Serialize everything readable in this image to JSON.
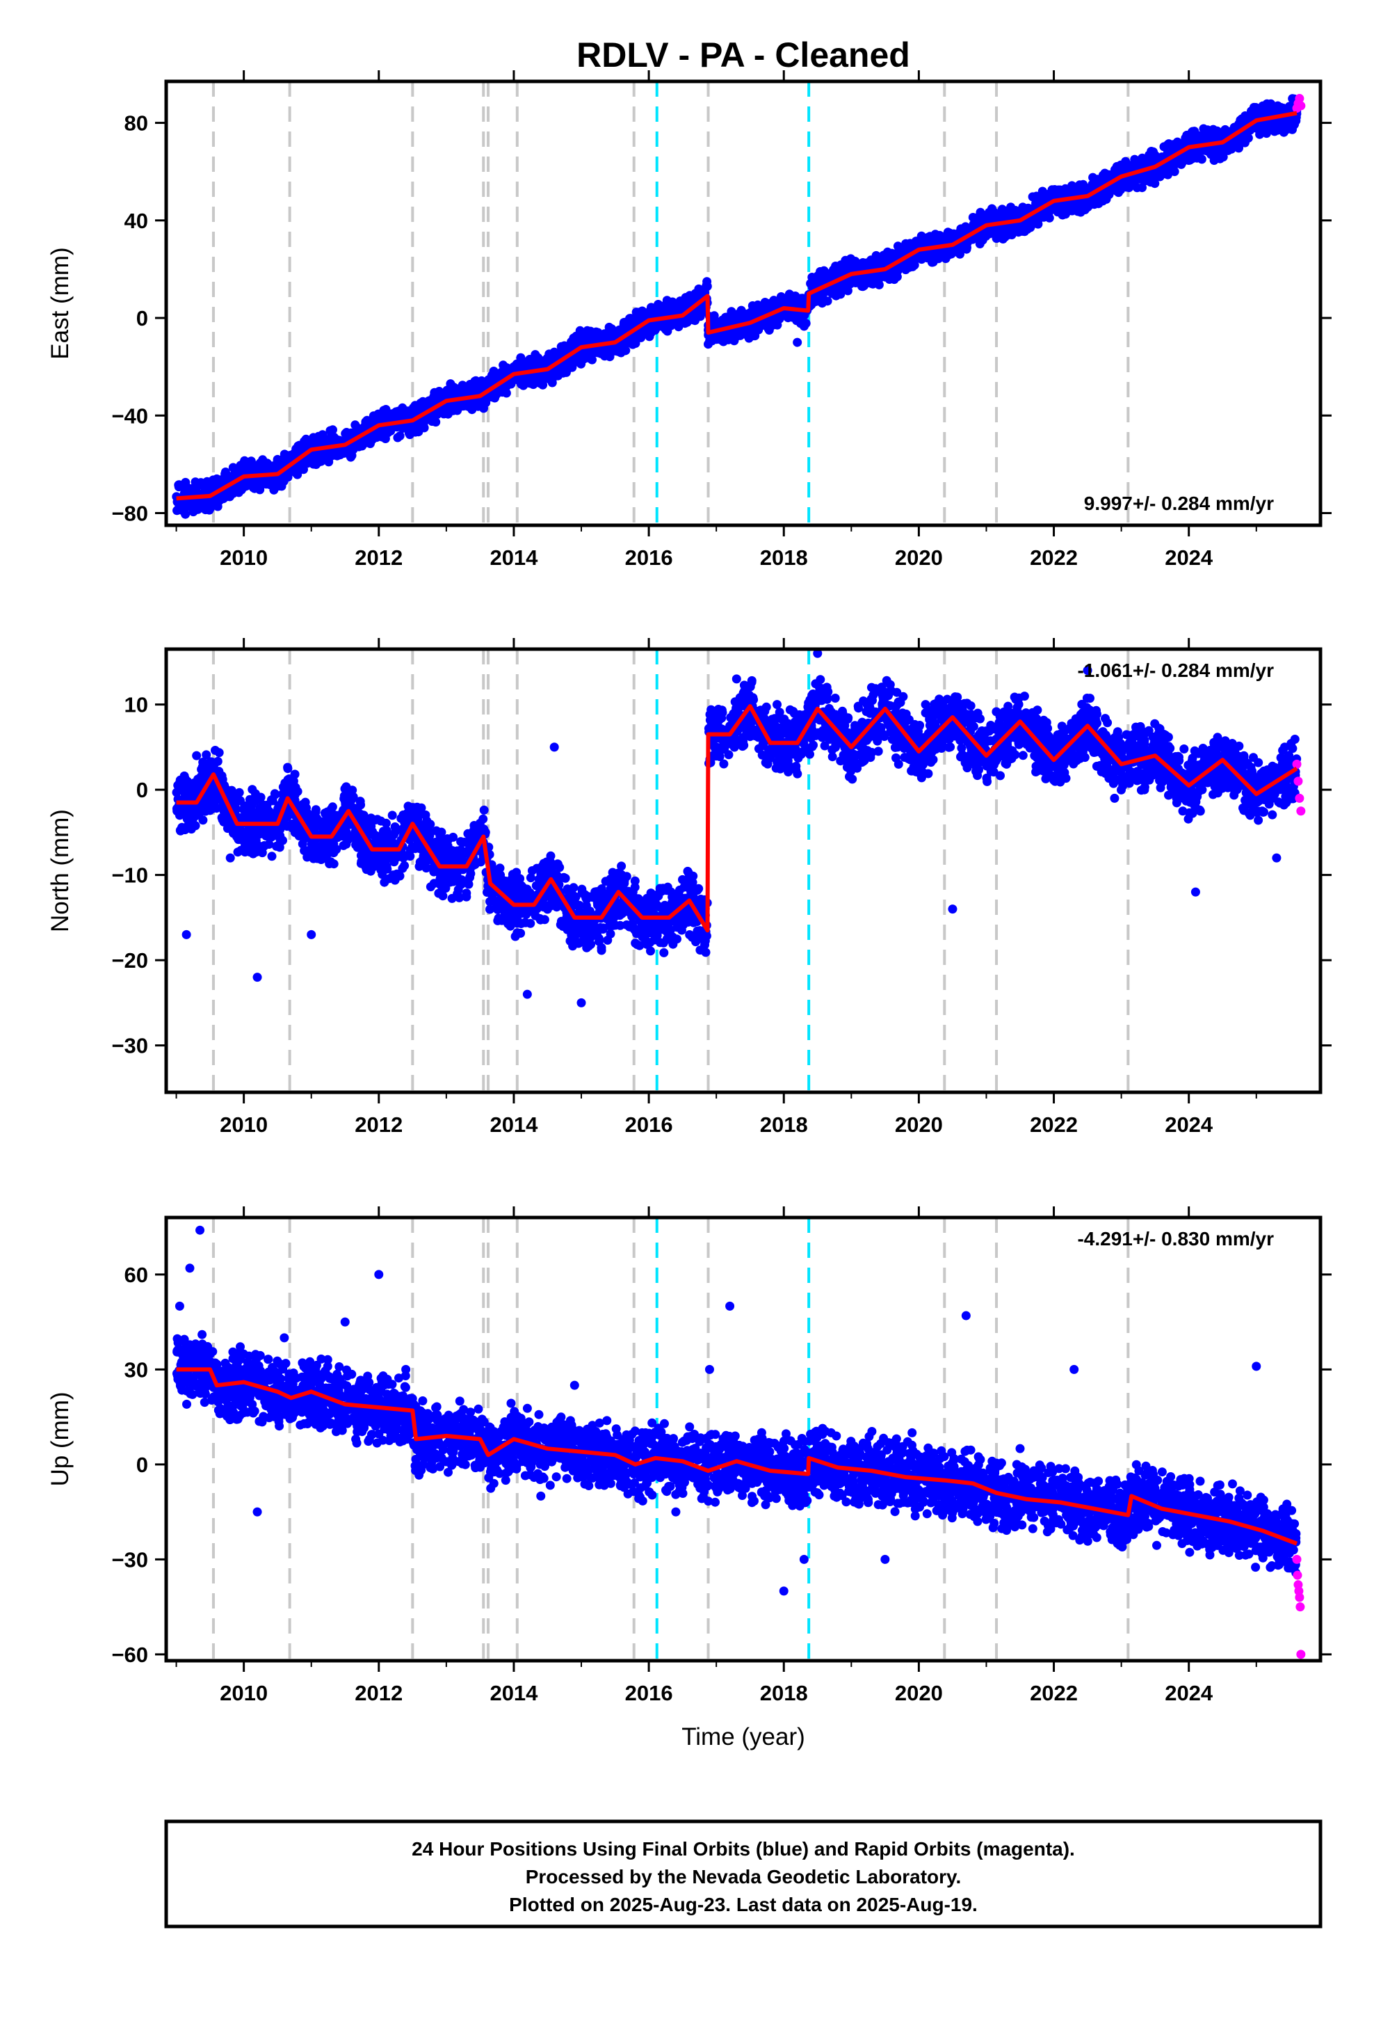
{
  "chart_data": {
    "title": "RDLV  - PA - Cleaned",
    "xlabel": "Time (year)",
    "xlim": [
      2008.85,
      2025.95
    ],
    "x_ticks": [
      2010,
      2012,
      2014,
      2016,
      2018,
      2020,
      2022,
      2024
    ],
    "x_tick_labels": [
      "2010",
      "2012",
      "2014",
      "2016",
      "2018",
      "2020",
      "2022",
      "2024"
    ],
    "events_gray": [
      2009.55,
      2010.68,
      2012.5,
      2013.55,
      2013.62,
      2014.05,
      2015.78,
      2016.88,
      2020.38,
      2021.15,
      2023.1
    ],
    "events_cyan": [
      2016.12,
      2018.37
    ],
    "colors": {
      "final_orbits": "#0000ff",
      "rapid_orbits": "#ff00ff",
      "model": "#ff0000",
      "gray_event": "#c8c8c8",
      "cyan_event": "#00e5ff"
    },
    "panels": [
      {
        "type": "scatter",
        "ylabel": "East (mm)",
        "ylim": [
          -85,
          97
        ],
        "y_ticks": [
          -80,
          -40,
          0,
          40,
          80
        ],
        "y_tick_labels": [
          "−80",
          "−40",
          "0",
          "40",
          "80"
        ],
        "rate_text": "9.997+/- 0.284 mm/yr",
        "rate_position": "bottom-right",
        "model_curve": {
          "x": [
            2009.0,
            2009.5,
            2010.0,
            2010.5,
            2011.0,
            2011.5,
            2012.0,
            2012.5,
            2013.0,
            2013.5,
            2014.0,
            2014.5,
            2015.0,
            2015.5,
            2016.0,
            2016.5,
            2016.87,
            2016.88,
            2017.5,
            2018.0,
            2018.36,
            2018.37,
            2019.0,
            2019.5,
            2020.0,
            2020.5,
            2021.0,
            2021.5,
            2022.0,
            2022.5,
            2023.0,
            2023.5,
            2024.0,
            2024.5,
            2025.0,
            2025.6
          ],
          "y": [
            -74,
            -73,
            -65,
            -64,
            -54,
            -52,
            -44,
            -42,
            -34,
            -32,
            -23,
            -21,
            -12,
            -10,
            -1,
            1,
            9,
            -6,
            -2,
            4,
            3,
            10,
            18,
            20,
            28,
            30,
            38,
            40,
            48,
            50,
            58,
            62,
            70,
            72,
            81,
            84
          ]
        },
        "final_orbits": {
          "x": [
            2009.05,
            2009.2,
            2009.4,
            2009.6,
            2009.8,
            2010.0,
            2010.3,
            2010.5,
            2010.8,
            2011.0,
            2011.3,
            2011.6,
            2011.9,
            2012.2,
            2012.5,
            2012.8,
            2013.1,
            2013.4,
            2013.7,
            2014.0,
            2014.3,
            2014.6,
            2014.9,
            2015.2,
            2015.5,
            2015.8,
            2016.1,
            2016.4,
            2016.7,
            2017.0,
            2017.3,
            2017.6,
            2017.9,
            2018.2,
            2018.5,
            2018.8,
            2019.1,
            2019.4,
            2019.7,
            2020.0,
            2020.3,
            2020.6,
            2020.9,
            2021.2,
            2021.5,
            2021.8,
            2022.1,
            2022.4,
            2022.7,
            2023.0,
            2023.3,
            2023.6,
            2023.9,
            2024.2,
            2024.5,
            2024.8,
            2025.1,
            2025.4
          ],
          "y": [
            -75,
            -70,
            -78,
            -66,
            -72,
            -61,
            -68,
            -58,
            -62,
            -52,
            -55,
            -48,
            -50,
            -40,
            -46,
            -36,
            -38,
            -30,
            -30,
            -20,
            -25,
            -14,
            -18,
            -8,
            -12,
            -2,
            0,
            2,
            5,
            -5,
            -3,
            0,
            5,
            -10,
            12,
            15,
            20,
            18,
            25,
            28,
            30,
            35,
            36,
            40,
            38,
            45,
            48,
            52,
            55,
            58,
            62,
            66,
            70,
            72,
            76,
            80,
            84,
            86
          ]
        },
        "rapid_orbits": {
          "x": [
            2025.6,
            2025.62,
            2025.64,
            2025.66
          ],
          "y": [
            86,
            88,
            90,
            87
          ]
        }
      },
      {
        "type": "scatter",
        "ylabel": "North (mm)",
        "ylim": [
          -35.5,
          16.5
        ],
        "y_ticks": [
          -30,
          -20,
          -10,
          0,
          10
        ],
        "y_tick_labels": [
          "−30",
          "−20",
          "−10",
          "0",
          "10"
        ],
        "rate_text": "-1.061+/- 0.284 mm/yr",
        "rate_position": "top-right",
        "model_curve": {
          "x": [
            2009.0,
            2009.3,
            2009.55,
            2009.9,
            2010.2,
            2010.5,
            2010.65,
            2011.0,
            2011.3,
            2011.55,
            2011.9,
            2012.3,
            2012.5,
            2012.9,
            2013.3,
            2013.55,
            2013.65,
            2014.0,
            2014.3,
            2014.55,
            2014.9,
            2015.3,
            2015.55,
            2015.9,
            2016.3,
            2016.6,
            2016.87,
            2016.88,
            2017.2,
            2017.5,
            2017.8,
            2018.2,
            2018.5,
            2019.0,
            2019.5,
            2020.0,
            2020.5,
            2021.0,
            2021.5,
            2022.0,
            2022.5,
            2023.0,
            2023.5,
            2024.0,
            2024.5,
            2025.0,
            2025.6
          ],
          "y": [
            -1.5,
            -1.5,
            1.8,
            -4.0,
            -4.0,
            -4.0,
            -1.0,
            -5.5,
            -5.5,
            -2.5,
            -7.0,
            -7.0,
            -4.0,
            -9.0,
            -9.0,
            -5.5,
            -11.0,
            -13.5,
            -13.5,
            -10.5,
            -15.0,
            -15.0,
            -12.0,
            -15.0,
            -15.0,
            -13.0,
            -16.5,
            6.5,
            6.5,
            9.8,
            5.5,
            5.5,
            9.5,
            5.0,
            9.5,
            4.5,
            8.5,
            4.0,
            8.0,
            3.5,
            7.5,
            3.0,
            4.0,
            0.5,
            3.5,
            -0.5,
            2.5
          ]
        },
        "final_orbits": {
          "x": [
            2009.05,
            2009.15,
            2009.3,
            2009.5,
            2009.8,
            2010.2,
            2010.6,
            2011.0,
            2011.4,
            2011.8,
            2012.2,
            2012.6,
            2013.0,
            2013.4,
            2013.8,
            2014.2,
            2014.6,
            2015.0,
            2015.4,
            2015.8,
            2016.2,
            2016.6,
            2017.0,
            2017.3,
            2017.6,
            2017.9,
            2018.2,
            2018.5,
            2018.9,
            2019.3,
            2019.7,
            2020.1,
            2020.5,
            2020.9,
            2021.3,
            2021.7,
            2022.1,
            2022.5,
            2022.9,
            2023.3,
            2023.7,
            2024.1,
            2024.5,
            2024.9,
            2025.3
          ],
          "y": [
            -3,
            -17,
            4,
            2,
            -8,
            -22,
            -2,
            -17,
            -4,
            -7,
            -3,
            -9,
            -6,
            -8,
            -10,
            -24,
            5,
            -25,
            -14,
            -18,
            -16,
            -14,
            8,
            13,
            7,
            10,
            8,
            16,
            4,
            12,
            3,
            10,
            -14,
            6,
            3,
            9,
            1,
            14,
            -1,
            6,
            2,
            -12,
            4,
            1,
            -8
          ]
        },
        "rapid_orbits": {
          "x": [
            2025.6,
            2025.62,
            2025.64,
            2025.66
          ],
          "y": [
            3,
            1,
            -1,
            -2.5
          ]
        }
      },
      {
        "type": "scatter",
        "ylabel": "Up (mm)",
        "ylim": [
          -62,
          78
        ],
        "y_ticks": [
          -60,
          -30,
          0,
          30,
          60
        ],
        "y_tick_labels": [
          "−60",
          "−30",
          "0",
          "30",
          "60"
        ],
        "rate_text": "-4.291+/- 0.830 mm/yr",
        "rate_position": "top-right",
        "model_curve": {
          "x": [
            2009.0,
            2009.5,
            2009.6,
            2010.0,
            2010.5,
            2010.7,
            2011.0,
            2011.5,
            2012.0,
            2012.5,
            2012.55,
            2013.0,
            2013.5,
            2013.62,
            2014.0,
            2014.5,
            2015.0,
            2015.5,
            2015.8,
            2016.1,
            2016.5,
            2016.88,
            2017.3,
            2017.8,
            2018.36,
            2018.37,
            2018.8,
            2019.3,
            2019.8,
            2020.38,
            2020.8,
            2021.15,
            2021.6,
            2022.1,
            2022.6,
            2023.1,
            2023.15,
            2023.6,
            2024.1,
            2024.6,
            2025.1,
            2025.6
          ],
          "y": [
            30,
            30,
            25,
            26,
            23,
            21,
            23,
            19,
            18,
            17,
            8,
            9,
            8,
            3,
            8,
            5,
            4,
            3,
            0,
            2,
            1,
            -2,
            1,
            -2,
            -3,
            2,
            -1,
            -2,
            -4,
            -5,
            -6,
            -9,
            -11,
            -12,
            -14,
            -16,
            -10,
            -14,
            -16,
            -18,
            -21,
            -25
          ]
        },
        "final_orbits": {
          "x": [
            2009.05,
            2009.2,
            2009.35,
            2009.5,
            2009.8,
            2010.2,
            2010.6,
            2011.0,
            2011.5,
            2012.0,
            2012.4,
            2012.8,
            2013.2,
            2013.6,
            2014.0,
            2014.4,
            2014.9,
            2015.4,
            2015.9,
            2016.4,
            2016.9,
            2017.2,
            2017.6,
            2018.0,
            2018.3,
            2018.7,
            2019.1,
            2019.5,
            2019.9,
            2020.3,
            2020.7,
            2021.1,
            2021.5,
            2021.9,
            2022.3,
            2022.7,
            2023.1,
            2023.5,
            2023.9,
            2024.3,
            2024.7,
            2025.0,
            2025.4
          ],
          "y": [
            50,
            62,
            74,
            35,
            15,
            -15,
            40,
            20,
            45,
            60,
            30,
            10,
            20,
            5,
            15,
            -10,
            25,
            -5,
            10,
            -15,
            30,
            50,
            5,
            -40,
            -30,
            10,
            5,
            -30,
            10,
            -10,
            47,
            -20,
            5,
            -10,
            30,
            -15,
            -20,
            -5,
            -25,
            -15,
            -22,
            31,
            -28
          ]
        },
        "rapid_orbits": {
          "x": [
            2025.6,
            2025.61,
            2025.62,
            2025.63,
            2025.64,
            2025.65,
            2025.66
          ],
          "y": [
            -30,
            -35,
            -38,
            -40,
            -42,
            -45,
            -60
          ]
        }
      }
    ]
  },
  "footer": {
    "line1": "24 Hour Positions Using Final Orbits (blue) and Rapid Orbits (magenta).",
    "line2": "Processed by the Nevada Geodetic Laboratory.",
    "line3": "Plotted on 2025-Aug-23. Last data on 2025-Aug-19."
  }
}
